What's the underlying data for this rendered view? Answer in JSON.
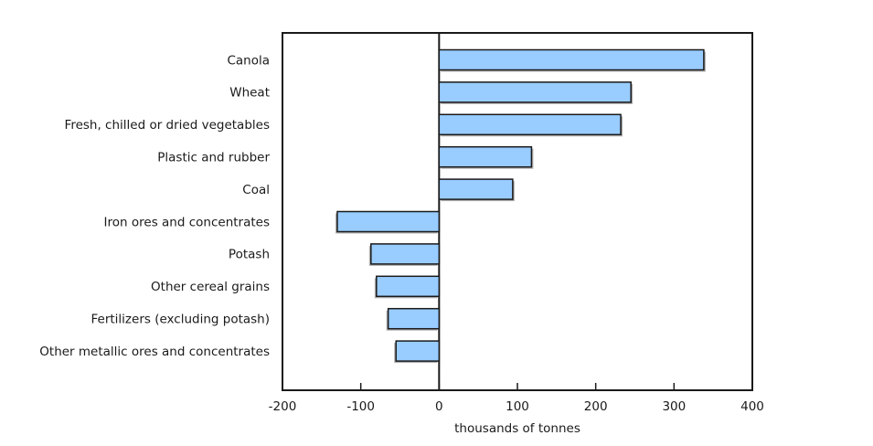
{
  "chart_data": {
    "type": "bar",
    "orientation": "horizontal",
    "title": "",
    "xlabel": "thousands of tonnes",
    "ylabel": "",
    "categories": [
      "Canola",
      "Wheat",
      "Fresh, chilled or dried vegetables",
      "Plastic and rubber",
      "Coal",
      "Iron ores and concentrates",
      "Potash",
      "Other cereal grains",
      "Fertilizers (excluding potash)",
      "Other metallic ores and concentrates"
    ],
    "values": [
      338,
      245,
      232,
      118,
      94,
      -130,
      -87,
      -80,
      -65,
      -55
    ],
    "xlim": [
      -200,
      400
    ],
    "xticks": [
      -200,
      -100,
      0,
      100,
      200,
      300,
      400
    ],
    "grid": false,
    "legend": false,
    "colors": {
      "bar_fill": "#99CCFF",
      "bar_border": "#1a1a1a",
      "bar_shadow": "#b0b0b0",
      "axis": "#1a1a1a",
      "text": "#1a1a1a",
      "background": "#ffffff"
    }
  }
}
